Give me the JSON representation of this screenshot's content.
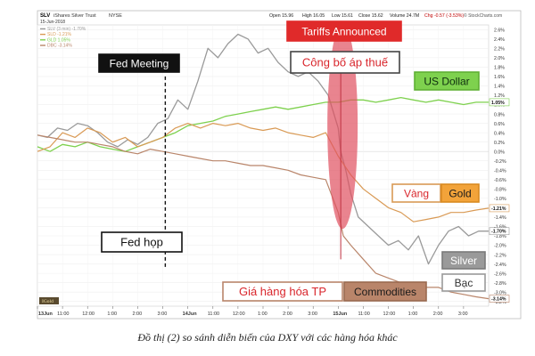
{
  "chart_data": {
    "type": "line",
    "header": {
      "symbol": "SLV",
      "name": "iShares Silver Trust",
      "exchange": "NYSE",
      "date": "15-Jun-2018",
      "open": "Open 15.96",
      "high": "High 16.05",
      "low": "Low 15.61",
      "close": "Close 15.62",
      "volume": "Volume 24.7M",
      "chg": "Chg -0.57 (-3.53%)",
      "source": "© StockCharts.com"
    },
    "legend": [
      {
        "label": "SLV (3 min) -1.70%",
        "color": "#9a9a9a"
      },
      {
        "label": "SLD -1.21%",
        "color": "#d99a55"
      },
      {
        "label": "GLD 1.05%",
        "color": "#7ed14e"
      },
      {
        "label": "DBC -3.14%",
        "color": "#b9856a"
      }
    ],
    "x_ticks": [
      "13Jun",
      "11:00",
      "12:00",
      "1:00",
      "2:00",
      "3:00",
      "14Jun",
      "11:00",
      "12:00",
      "1:00",
      "2:00",
      "3:00",
      "15Jun",
      "11:00",
      "12:00",
      "1:00",
      "2:00",
      "3:00"
    ],
    "y_ticks": [
      "2.6%",
      "2.4%",
      "2.2%",
      "2.0%",
      "1.8%",
      "1.6%",
      "1.4%",
      "1.2%",
      "1.0%",
      "0.8%",
      "0.6%",
      "0.4%",
      "0.2%",
      "0.0%",
      "-0.2%",
      "-0.4%",
      "-0.6%",
      "-0.8%",
      "-1.0%",
      "-1.2%",
      "-1.4%",
      "-1.6%",
      "-1.8%",
      "-2.0%",
      "-2.2%",
      "-2.4%",
      "-2.6%",
      "-2.8%",
      "-3.0%",
      "-3.2%"
    ],
    "ylim": [
      -3.3,
      2.7
    ],
    "xlim": [
      0,
      18
    ],
    "watermark": "IGold",
    "end_labels": [
      {
        "text": "1.05%",
        "value": 1.05,
        "color": "#7ed14e"
      },
      {
        "text": "-1.21%",
        "value": -1.21,
        "color": "#d99a55"
      },
      {
        "text": "-1.70%",
        "value": -1.7,
        "color": "#9a9a9a"
      },
      {
        "text": "-3.14%",
        "value": -3.14,
        "color": "#b9856a"
      }
    ],
    "series": [
      {
        "key": "gray",
        "color": "#9a9a9a",
        "width": 1.3,
        "x": [
          0,
          0.4,
          0.8,
          1.2,
          1.6,
          2,
          2.4,
          2.8,
          3.2,
          3.6,
          4,
          4.4,
          4.8,
          5.2,
          5.6,
          6,
          6.4,
          6.8,
          7.2,
          7.6,
          8,
          8.4,
          8.8,
          9.2,
          9.6,
          10,
          10.4,
          10.8,
          11.2,
          11.6,
          12,
          12.1,
          12.3,
          12.5,
          12.8,
          13.2,
          13.6,
          14,
          14.4,
          14.8,
          15.2,
          15.6,
          16,
          16.4,
          16.8,
          17.2,
          17.6,
          18
        ],
        "y": [
          0.35,
          0.3,
          0.5,
          0.45,
          0.6,
          0.55,
          0.4,
          0.2,
          0.1,
          0.25,
          0.15,
          0.3,
          0.6,
          0.7,
          1.1,
          0.9,
          1.5,
          2.2,
          2.0,
          2.3,
          2.5,
          2.4,
          2.1,
          2.2,
          1.9,
          1.7,
          1.6,
          1.7,
          1.5,
          1.2,
          0.5,
          0.0,
          -0.4,
          -0.9,
          -1.4,
          -1.6,
          -1.8,
          -2.0,
          -1.9,
          -2.1,
          -1.8,
          -2.4,
          -2.0,
          -1.7,
          -1.6,
          -1.8,
          -1.7,
          -1.7
        ]
      },
      {
        "key": "green",
        "color": "#7ed14e",
        "width": 1.3,
        "x": [
          0,
          0.5,
          1,
          1.5,
          2,
          2.5,
          3,
          3.5,
          4,
          4.5,
          5,
          5.5,
          6,
          6.5,
          7,
          7.5,
          8,
          8.5,
          9,
          9.5,
          10,
          10.5,
          11,
          11.5,
          12,
          12.5,
          13,
          13.5,
          14,
          14.5,
          15,
          15.5,
          16,
          16.5,
          17,
          17.5,
          18
        ],
        "y": [
          0.1,
          0.0,
          0.15,
          0.1,
          0.2,
          0.1,
          0.05,
          0.0,
          0.1,
          0.2,
          0.3,
          0.4,
          0.55,
          0.6,
          0.65,
          0.75,
          0.8,
          0.85,
          0.9,
          0.95,
          0.9,
          0.95,
          1.0,
          1.05,
          1.05,
          1.1,
          1.1,
          1.05,
          1.1,
          1.15,
          1.1,
          1.05,
          1.1,
          1.05,
          1.0,
          1.05,
          1.05
        ]
      },
      {
        "key": "orange",
        "color": "#d99a55",
        "width": 1.2,
        "x": [
          0,
          0.5,
          1,
          1.5,
          2,
          2.5,
          3,
          3.5,
          4,
          4.5,
          5,
          5.5,
          6,
          6.5,
          7,
          7.5,
          8,
          8.5,
          9,
          9.5,
          10,
          10.5,
          11,
          11.5,
          12,
          12.5,
          13,
          13.5,
          14,
          14.5,
          15,
          15.5,
          16,
          16.5,
          17,
          17.5,
          18
        ],
        "y": [
          0.0,
          0.1,
          0.4,
          0.3,
          0.5,
          0.4,
          0.2,
          0.3,
          0.1,
          0.2,
          0.3,
          0.5,
          0.6,
          0.5,
          0.6,
          0.55,
          0.6,
          0.5,
          0.45,
          0.5,
          0.4,
          0.35,
          0.3,
          0.4,
          -0.1,
          -0.5,
          -0.8,
          -1.0,
          -1.2,
          -1.3,
          -1.5,
          -1.45,
          -1.4,
          -1.3,
          -1.3,
          -1.25,
          -1.21
        ]
      },
      {
        "key": "brown",
        "color": "#b9856a",
        "width": 1.2,
        "x": [
          0,
          0.5,
          1,
          1.5,
          2,
          2.5,
          3,
          3.5,
          4,
          4.5,
          5,
          5.5,
          6,
          6.5,
          7,
          7.5,
          8,
          8.5,
          9,
          9.5,
          10,
          10.5,
          11,
          11.5,
          12,
          12.2,
          12.5,
          13,
          13.5,
          14,
          14.5,
          15,
          15.5,
          16,
          16.5,
          17,
          17.5,
          18
        ],
        "y": [
          0.35,
          0.3,
          0.25,
          0.2,
          0.2,
          0.15,
          0.1,
          0.0,
          -0.05,
          0.05,
          0.0,
          -0.05,
          -0.1,
          -0.15,
          -0.2,
          -0.2,
          -0.25,
          -0.3,
          -0.3,
          -0.35,
          -0.4,
          -0.5,
          -0.55,
          -0.6,
          -1.3,
          -1.8,
          -2.0,
          -2.3,
          -2.6,
          -2.7,
          -2.8,
          -2.85,
          -2.9,
          -2.9,
          -3.0,
          -3.05,
          -3.1,
          -3.14
        ]
      }
    ],
    "events": [
      {
        "key": "fed",
        "x": 5.1,
        "y_top": 1.6,
        "y_bottom": -2.5
      }
    ],
    "annotations": [
      {
        "key": "fed_meeting",
        "text": "Fed Meeting",
        "style": "dark"
      },
      {
        "key": "tariffs",
        "text": "Tariffs Announced",
        "style": "red"
      },
      {
        "key": "cong_bo",
        "text": "Công bố áp thuế",
        "style": "outline"
      },
      {
        "key": "us_dollar",
        "text": "US Dollar",
        "style": "green"
      },
      {
        "key": "vang",
        "text": "Vàng",
        "style": "outline-orange"
      },
      {
        "key": "gold",
        "text": "Gold",
        "style": "orange"
      },
      {
        "key": "fed_hop",
        "text": "Fed họp",
        "style": "outline-black"
      },
      {
        "key": "silver",
        "text": "Silver",
        "style": "gray"
      },
      {
        "key": "bac",
        "text": "Bạc",
        "style": "outline-gray"
      },
      {
        "key": "gia_hang_hoa",
        "text": "Giá hàng hóa TP",
        "style": "outline-brown"
      },
      {
        "key": "commodities",
        "text": "Commodities",
        "style": "brown"
      }
    ]
  },
  "caption": "Đồ thị (2) so sánh diễn biến của DXY với các hàng hóa khác"
}
